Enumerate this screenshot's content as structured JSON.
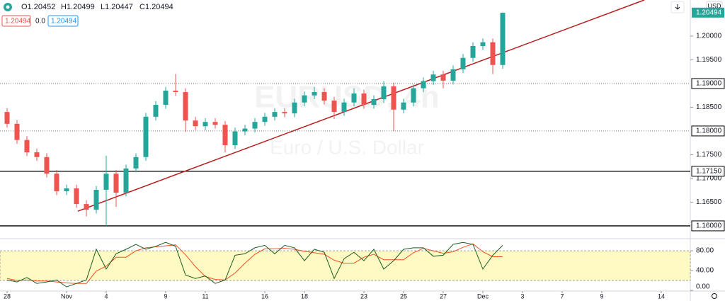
{
  "chart_data": {
    "type": "candlestick",
    "header": {
      "open": "O1.20452",
      "high": "H1.20499",
      "low": "L1.20447",
      "close": "C1.20494",
      "badge_red": "1.20494",
      "change": "0.0",
      "badge_blue": "1.20494"
    },
    "currency": "USD",
    "watermark": {
      "symbol": "EURUSD, 4h",
      "description": "Euro / U.S. Dollar"
    },
    "up_color": "#26a69a",
    "down_color": "#ef5350",
    "x": [
      0,
      0.5,
      1,
      1.5,
      2,
      2.5,
      3,
      3.5,
      4,
      4.5,
      5,
      5.5,
      6,
      6.5,
      7,
      7.5,
      8,
      8.5,
      9,
      9.5,
      10,
      10.5,
      11,
      11.5,
      12,
      12.5,
      13,
      13.5,
      14,
      14.5,
      15,
      15.5,
      16,
      16.5,
      17,
      17.5,
      18,
      18.5,
      19,
      19.5,
      20,
      20.5,
      21,
      21.5,
      22,
      22.5,
      23,
      23.5,
      24,
      24.5,
      25
    ],
    "open": [
      1.184,
      1.1815,
      1.1781,
      1.1755,
      1.1745,
      1.171,
      1.1673,
      1.1679,
      1.1646,
      1.1634,
      1.1676,
      1.171,
      1.167,
      1.1721,
      1.1745,
      1.183,
      1.1855,
      1.1885,
      1.1882,
      1.1822,
      1.181,
      1.1819,
      1.1813,
      1.177,
      1.1799,
      1.1805,
      1.1819,
      1.183,
      1.184,
      1.1837,
      1.186,
      1.1875,
      1.1882,
      1.1864,
      1.184,
      1.186,
      1.1879,
      1.1855,
      1.1867,
      1.1894,
      1.1845,
      1.186,
      1.189,
      1.1905,
      1.1919,
      1.1906,
      1.193,
      1.1954,
      1.1979,
      1.1987,
      1.1939
    ],
    "high": [
      1.1848,
      1.1823,
      1.1789,
      1.1763,
      1.1753,
      1.1718,
      1.1687,
      1.1687,
      1.1654,
      1.1684,
      1.1748,
      1.1718,
      1.1729,
      1.1753,
      1.1838,
      1.1863,
      1.1893,
      1.192,
      1.189,
      1.183,
      1.1827,
      1.1827,
      1.1821,
      1.1807,
      1.1813,
      1.1827,
      1.1838,
      1.1848,
      1.1848,
      1.1868,
      1.1883,
      1.1893,
      1.189,
      1.1872,
      1.1868,
      1.189,
      1.1887,
      1.1875,
      1.1905,
      1.1902,
      1.1868,
      1.1898,
      1.1913,
      1.1927,
      1.1927,
      1.1938,
      1.1962,
      1.1987,
      1.1995,
      1.1995,
      1.205
    ],
    "low": [
      1.1807,
      1.1773,
      1.1747,
      1.1737,
      1.1702,
      1.1665,
      1.1665,
      1.1638,
      1.162,
      1.1626,
      1.16,
      1.164,
      1.1662,
      1.1713,
      1.1737,
      1.1822,
      1.1847,
      1.1874,
      1.1798,
      1.1802,
      1.1802,
      1.1805,
      1.1755,
      1.1762,
      1.1791,
      1.1797,
      1.1811,
      1.1822,
      1.1829,
      1.1829,
      1.1852,
      1.1867,
      1.1856,
      1.1825,
      1.1832,
      1.1852,
      1.1847,
      1.1847,
      1.1859,
      1.18,
      1.1837,
      1.1852,
      1.1882,
      1.1897,
      1.189,
      1.1898,
      1.1922,
      1.1946,
      1.1971,
      1.192,
      1.1931
    ],
    "close": [
      1.1815,
      1.1781,
      1.1755,
      1.1745,
      1.171,
      1.1673,
      1.1679,
      1.1646,
      1.1634,
      1.1676,
      1.171,
      1.167,
      1.1721,
      1.1745,
      1.183,
      1.1855,
      1.1885,
      1.1882,
      1.1822,
      1.181,
      1.1819,
      1.1813,
      1.177,
      1.1799,
      1.1805,
      1.1819,
      1.183,
      1.184,
      1.1837,
      1.186,
      1.1875,
      1.1882,
      1.1864,
      1.184,
      1.186,
      1.1879,
      1.1855,
      1.1867,
      1.1894,
      1.1845,
      1.186,
      1.189,
      1.1905,
      1.1919,
      1.1906,
      1.193,
      1.1954,
      1.1979,
      1.1987,
      1.1939,
      1.2049
    ],
    "xlim": [
      -0.357,
      34.464
    ],
    "xticks": [
      {
        "value": 0,
        "label": "28"
      },
      {
        "value": 3,
        "label": "Nov"
      },
      {
        "value": 5,
        "label": "4"
      },
      {
        "value": 8,
        "label": "9"
      },
      {
        "value": 10,
        "label": "11"
      },
      {
        "value": 13,
        "label": "16"
      },
      {
        "value": 15,
        "label": "18"
      },
      {
        "value": 18,
        "label": "23"
      },
      {
        "value": 20,
        "label": "25"
      },
      {
        "value": 22,
        "label": "27"
      },
      {
        "value": 24,
        "label": "Dec"
      },
      {
        "value": 26,
        "label": "3"
      },
      {
        "value": 28,
        "label": "7"
      },
      {
        "value": 30,
        "label": "9"
      },
      {
        "value": 33,
        "label": "14"
      }
    ],
    "ylim": [
      1.1576,
      1.2076
    ],
    "yticks": [
      {
        "value": 1.2,
        "label": "1.20000"
      },
      {
        "value": 1.195,
        "label": "1.19500"
      },
      {
        "value": 1.185,
        "label": "1.18500"
      },
      {
        "value": 1.175,
        "label": "1.17500"
      },
      {
        "value": 1.17,
        "label": "1.17000"
      },
      {
        "value": 1.165,
        "label": "1.16500"
      }
    ],
    "price_lines": [
      {
        "value": 1.19,
        "label": "1.19000",
        "style": "dotted"
      },
      {
        "value": 1.18,
        "label": "1.18000",
        "style": "dotted"
      },
      {
        "value": 1.1715,
        "label": "1.17150",
        "style": "solid"
      },
      {
        "value": 1.16,
        "label": "1.16000",
        "style": "solid"
      }
    ],
    "last_price": {
      "value": 1.20494,
      "label": "1.20494"
    },
    "trendline": {
      "x": [
        3.57,
        32.14
      ],
      "y": [
        1.1631,
        1.2076
      ],
      "color": "#b71c1c"
    },
    "oscillator": {
      "ylim": [
        0,
        103
      ],
      "yticks": [
        {
          "value": 80,
          "label": "80.00"
        },
        {
          "value": 40,
          "label": "40.00"
        },
        {
          "value": 0,
          "label": "0.00"
        }
      ],
      "band": [
        20,
        80
      ],
      "band_color": "#fff9c4",
      "k": {
        "color": "#1b5e20",
        "values": [
          21,
          17,
          26,
          14,
          17,
          21,
          7,
          14,
          21,
          83,
          43,
          74,
          83,
          93,
          83,
          89,
          97,
          89,
          31,
          24,
          29,
          14,
          21,
          71,
          74,
          86,
          91,
          74,
          91,
          86,
          60,
          83,
          77,
          24,
          64,
          77,
          60,
          83,
          43,
          60,
          83,
          86,
          86,
          69,
          71,
          93,
          97,
          93,
          43,
          71,
          91
        ]
      },
      "d": {
        "color": "#f4511e",
        "values": [
          24,
          20,
          21,
          19,
          19,
          17,
          15,
          14,
          14,
          39,
          49,
          67,
          67,
          80,
          86,
          88,
          90,
          92,
          72,
          48,
          28,
          22,
          21,
          35,
          55,
          73,
          84,
          84,
          85,
          83,
          79,
          76,
          73,
          61,
          55,
          55,
          67,
          73,
          62,
          62,
          62,
          76,
          85,
          80,
          75,
          78,
          87,
          94,
          78,
          68,
          68
        ]
      }
    }
  }
}
